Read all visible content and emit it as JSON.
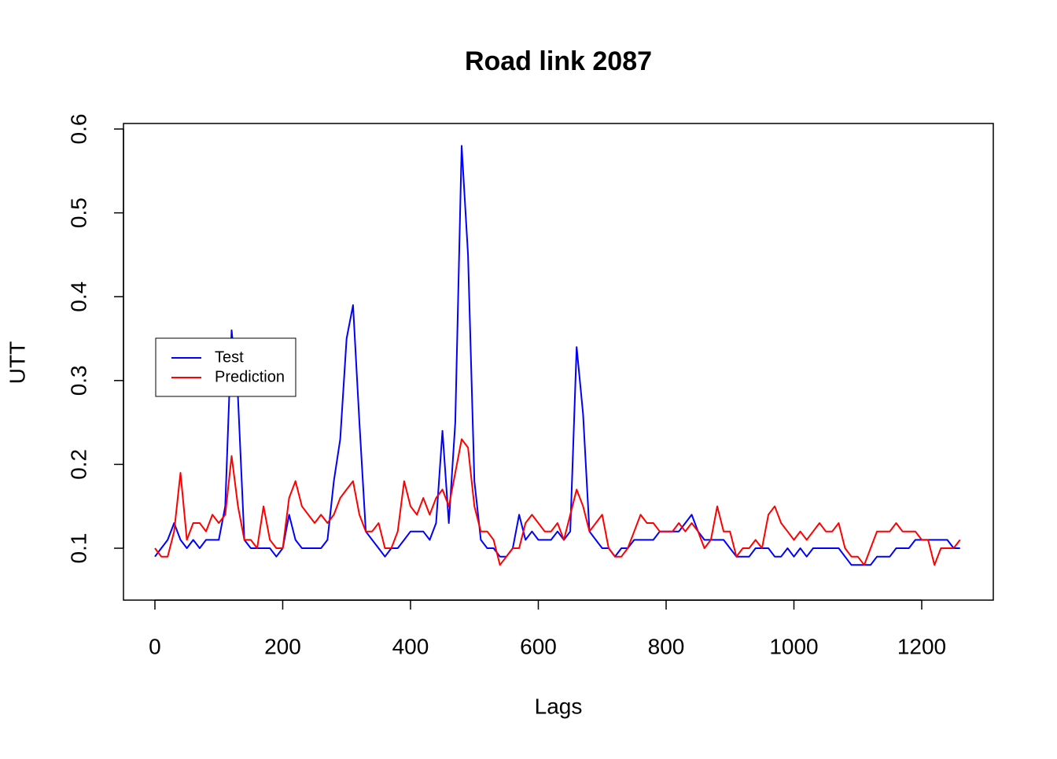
{
  "chart_data": {
    "type": "line",
    "title": "Road link 2087",
    "x_label": "Lags",
    "y_label": "UTT",
    "x": [
      0,
      10,
      20,
      30,
      40,
      50,
      60,
      70,
      80,
      90,
      100,
      110,
      120,
      130,
      140,
      150,
      160,
      170,
      180,
      190,
      200,
      210,
      220,
      230,
      240,
      250,
      260,
      270,
      280,
      290,
      300,
      310,
      320,
      330,
      340,
      350,
      360,
      370,
      380,
      390,
      400,
      410,
      420,
      430,
      440,
      450,
      460,
      470,
      480,
      490,
      500,
      510,
      520,
      530,
      540,
      550,
      560,
      570,
      580,
      590,
      600,
      610,
      620,
      630,
      640,
      650,
      660,
      670,
      680,
      690,
      700,
      710,
      720,
      730,
      740,
      750,
      760,
      770,
      780,
      790,
      800,
      810,
      820,
      830,
      840,
      850,
      860,
      870,
      880,
      890,
      900,
      910,
      920,
      930,
      940,
      950,
      960,
      970,
      980,
      990,
      1000,
      1010,
      1020,
      1030,
      1040,
      1050,
      1060,
      1070,
      1080,
      1090,
      1100,
      1110,
      1120,
      1130,
      1140,
      1150,
      1160,
      1170,
      1180,
      1190,
      1200,
      1210,
      1220,
      1230,
      1240,
      1250,
      1260
    ],
    "series": [
      {
        "name": "Test",
        "color": "#0000ff",
        "values": [
          0.09,
          0.1,
          0.11,
          0.13,
          0.11,
          0.1,
          0.11,
          0.1,
          0.11,
          0.11,
          0.11,
          0.15,
          0.36,
          0.28,
          0.11,
          0.1,
          0.1,
          0.1,
          0.1,
          0.09,
          0.1,
          0.14,
          0.11,
          0.1,
          0.1,
          0.1,
          0.1,
          0.11,
          0.18,
          0.23,
          0.35,
          0.39,
          0.25,
          0.12,
          0.11,
          0.1,
          0.09,
          0.1,
          0.1,
          0.11,
          0.12,
          0.12,
          0.12,
          0.11,
          0.13,
          0.24,
          0.13,
          0.25,
          0.58,
          0.45,
          0.18,
          0.11,
          0.1,
          0.1,
          0.09,
          0.09,
          0.1,
          0.14,
          0.11,
          0.12,
          0.11,
          0.11,
          0.11,
          0.12,
          0.11,
          0.12,
          0.34,
          0.26,
          0.12,
          0.11,
          0.1,
          0.1,
          0.09,
          0.1,
          0.1,
          0.11,
          0.11,
          0.11,
          0.11,
          0.12,
          0.12,
          0.12,
          0.12,
          0.13,
          0.14,
          0.12,
          0.11,
          0.11,
          0.11,
          0.11,
          0.1,
          0.09,
          0.09,
          0.09,
          0.1,
          0.1,
          0.1,
          0.09,
          0.09,
          0.1,
          0.09,
          0.1,
          0.09,
          0.1,
          0.1,
          0.1,
          0.1,
          0.1,
          0.09,
          0.08,
          0.08,
          0.08,
          0.08,
          0.09,
          0.09,
          0.09,
          0.1,
          0.1,
          0.1,
          0.11,
          0.11,
          0.11,
          0.11,
          0.11,
          0.11,
          0.1,
          0.1
        ]
      },
      {
        "name": "Prediction",
        "color": "#ff0000",
        "values": [
          0.1,
          0.09,
          0.09,
          0.12,
          0.19,
          0.11,
          0.13,
          0.13,
          0.12,
          0.14,
          0.13,
          0.14,
          0.21,
          0.15,
          0.11,
          0.11,
          0.1,
          0.15,
          0.11,
          0.1,
          0.1,
          0.16,
          0.18,
          0.15,
          0.14,
          0.13,
          0.14,
          0.13,
          0.14,
          0.16,
          0.17,
          0.18,
          0.14,
          0.12,
          0.12,
          0.13,
          0.1,
          0.1,
          0.12,
          0.18,
          0.15,
          0.14,
          0.16,
          0.14,
          0.16,
          0.17,
          0.15,
          0.19,
          0.23,
          0.22,
          0.15,
          0.12,
          0.12,
          0.11,
          0.08,
          0.09,
          0.1,
          0.1,
          0.13,
          0.14,
          0.13,
          0.12,
          0.12,
          0.13,
          0.11,
          0.14,
          0.17,
          0.15,
          0.12,
          0.13,
          0.14,
          0.1,
          0.09,
          0.09,
          0.1,
          0.12,
          0.14,
          0.13,
          0.13,
          0.12,
          0.12,
          0.12,
          0.13,
          0.12,
          0.13,
          0.12,
          0.1,
          0.11,
          0.15,
          0.12,
          0.12,
          0.09,
          0.1,
          0.1,
          0.11,
          0.1,
          0.14,
          0.15,
          0.13,
          0.12,
          0.11,
          0.12,
          0.11,
          0.12,
          0.13,
          0.12,
          0.12,
          0.13,
          0.1,
          0.09,
          0.09,
          0.08,
          0.1,
          0.12,
          0.12,
          0.12,
          0.13,
          0.12,
          0.12,
          0.12,
          0.11,
          0.11,
          0.08,
          0.1,
          0.1,
          0.1,
          0.11
        ]
      }
    ],
    "xlim": [
      -49.2,
      1312
    ],
    "ylim": [
      0.0381,
      0.6066
    ],
    "xticks": [
      0,
      200,
      400,
      600,
      800,
      1000,
      1200
    ],
    "yticks": [
      0.1,
      0.2,
      0.3,
      0.4,
      0.5,
      0.6
    ],
    "legend": "left"
  }
}
